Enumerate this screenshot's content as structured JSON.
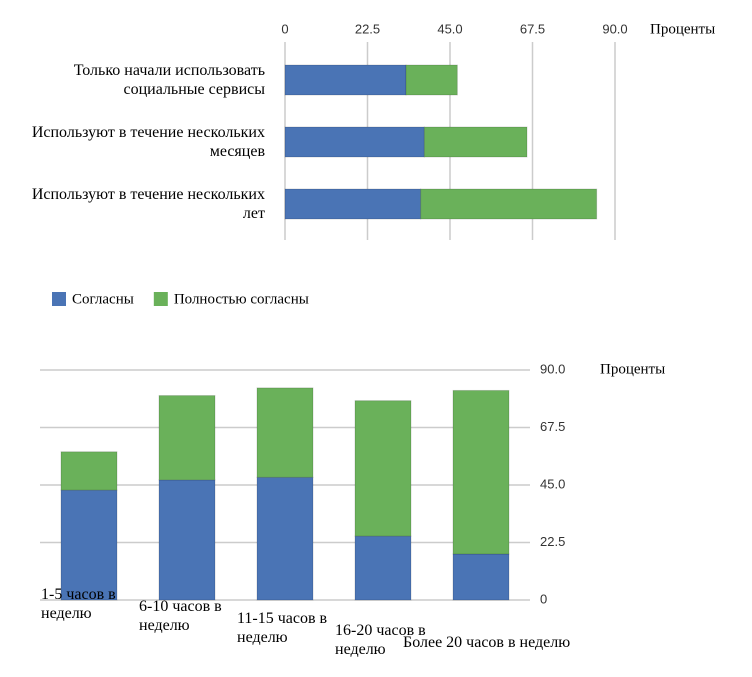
{
  "chart_data": [
    {
      "type": "hbar_stacked",
      "categories": [
        "Только начали использовать социальные сервисы",
        "Используют в течение нескольких месяцев",
        "Используют в течение нескольких лет"
      ],
      "series": [
        {
          "color": "#4a74b5",
          "values": [
            33,
            38,
            37
          ]
        },
        {
          "color": "#6ab15a",
          "values": [
            14,
            28,
            48
          ]
        }
      ],
      "xlim": [
        0,
        90
      ],
      "xticks": [
        0,
        22.5,
        {
          "value": 45,
          "label": "45.0"
        },
        67.5,
        {
          "value": 90,
          "label": "90.0"
        }
      ],
      "x_label": "Проценты",
      "grid": true
    },
    {
      "type": "bar_stacked",
      "categories": [
        "1-5 часов в неделю",
        "6-10 часов в неделю",
        "11-15 часов в неделю",
        "16-20 часов в неделю",
        "Более 20 часов в неделю"
      ],
      "series": [
        {
          "name": "Согласны",
          "color": "#4a74b5",
          "values": [
            43,
            47,
            48,
            25,
            18
          ]
        },
        {
          "name": "Полностью согласны",
          "color": "#6ab15a",
          "values": [
            15,
            33,
            35,
            53,
            64
          ]
        }
      ],
      "ylim": [
        0,
        90
      ],
      "yticks": [
        0,
        22.5,
        {
          "value": 45,
          "label": "45.0"
        },
        {
          "value": 67.5,
          "label": "67.5"
        },
        {
          "value": 90,
          "label": "90.0"
        }
      ],
      "y_label": "Проценты",
      "grid": true
    }
  ]
}
